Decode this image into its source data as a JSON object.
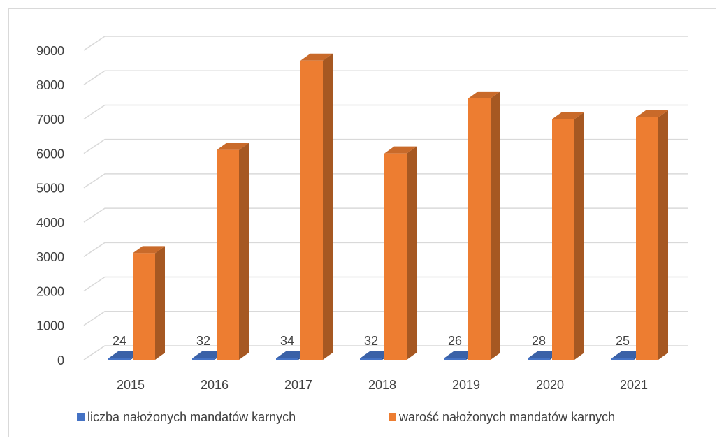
{
  "chart_data": {
    "type": "bar3d",
    "categories": [
      "2015",
      "2016",
      "2017",
      "2018",
      "2019",
      "2020",
      "2021"
    ],
    "series": [
      {
        "name": "liczba nałożonych mandatów karnych",
        "color": "#4472c4",
        "values": [
          24,
          32,
          34,
          32,
          26,
          28,
          25
        ],
        "data_labels": true
      },
      {
        "name": "warość nałożonych mandatów karnych",
        "color": "#ed7d31",
        "values": [
          3100,
          6100,
          8700,
          6000,
          7600,
          7000,
          7050
        ]
      }
    ],
    "ylim": [
      0,
      9000
    ],
    "yticks": [
      0,
      1000,
      2000,
      3000,
      4000,
      5000,
      6000,
      7000,
      8000,
      9000
    ],
    "grid": true,
    "legend": "bottom"
  }
}
